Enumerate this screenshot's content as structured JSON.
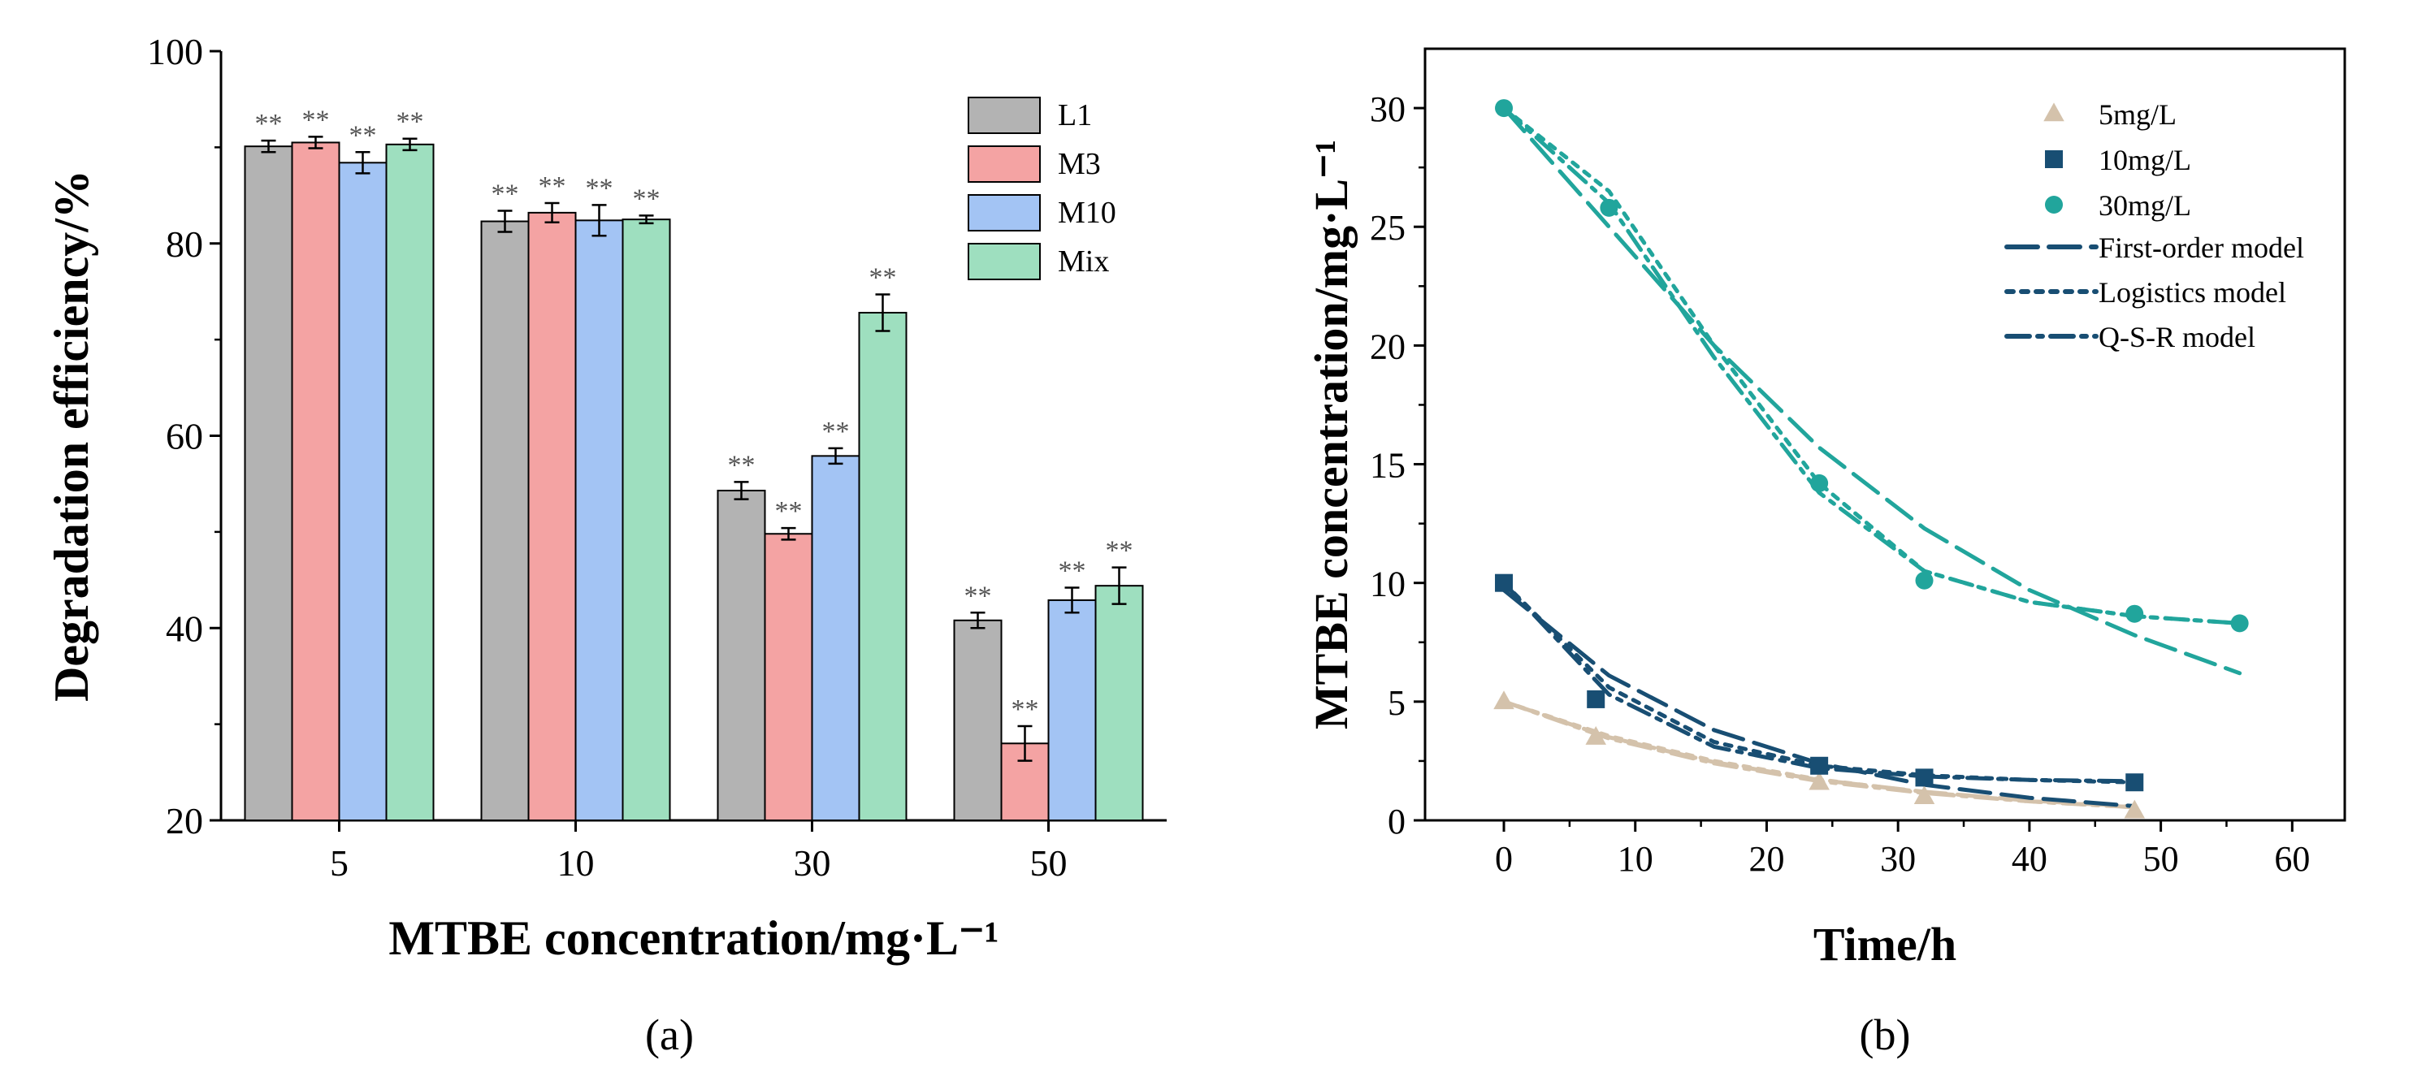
{
  "chart_data": [
    {
      "type": "bar",
      "panel_label": "(a)",
      "xlabel": "MTBE concentration/mg·L⁻¹",
      "ylabel": "Degradation efficiency/%",
      "categories": [
        "5",
        "10",
        "30",
        "50"
      ],
      "ylim": [
        20,
        100
      ],
      "yticks": [
        "20",
        "40",
        "60",
        "80",
        "100"
      ],
      "significance_label": "**",
      "legend_position": "top-right",
      "series": [
        {
          "name": "L1",
          "color": "#b3b3b3",
          "values": [
            90.1,
            82.3,
            54.3,
            40.8
          ],
          "errors": [
            0.6,
            1.1,
            0.9,
            0.8
          ]
        },
        {
          "name": "M3",
          "color": "#f4a3a3",
          "values": [
            90.5,
            83.2,
            49.8,
            28.0
          ],
          "errors": [
            0.6,
            1.0,
            0.6,
            1.8
          ]
        },
        {
          "name": "M10",
          "color": "#a3c4f4",
          "values": [
            88.4,
            82.4,
            57.9,
            42.9
          ],
          "errors": [
            1.1,
            1.6,
            0.8,
            1.3
          ]
        },
        {
          "name": "Mix",
          "color": "#9edfbf",
          "values": [
            90.3,
            82.5,
            72.8,
            44.4
          ],
          "errors": [
            0.6,
            0.4,
            1.9,
            1.9
          ]
        }
      ]
    },
    {
      "type": "scatter",
      "panel_label": "(b)",
      "xlabel": "Time/h",
      "ylabel": "MTBE concentration/mg·L⁻¹",
      "xlim": [
        -6,
        64
      ],
      "ylim": [
        0,
        32.5
      ],
      "xticks": [
        "0",
        "10",
        "20",
        "30",
        "40",
        "50",
        "60"
      ],
      "yticks": [
        "0",
        "5",
        "10",
        "15",
        "20",
        "25",
        "30"
      ],
      "legend_position": "top-center",
      "series": [
        {
          "name": "5mg/L",
          "marker": "triangle",
          "color": "#d4c2ab",
          "x": [
            0,
            7,
            24,
            32,
            48
          ],
          "y": [
            5.0,
            3.5,
            1.6,
            1.0,
            0.4
          ]
        },
        {
          "name": "10mg/L",
          "marker": "square",
          "color": "#184e73",
          "x": [
            0,
            7,
            24,
            32,
            48
          ],
          "y": [
            10.0,
            5.1,
            2.3,
            1.8,
            1.6
          ]
        },
        {
          "name": "30mg/L",
          "marker": "circle",
          "color": "#21a59c",
          "x": [
            0,
            8,
            24,
            32,
            48,
            56
          ],
          "y": [
            30.0,
            25.8,
            14.2,
            10.1,
            8.7,
            8.3
          ]
        }
      ],
      "models": [
        {
          "name": "First-order model",
          "dash": "long-dash"
        },
        {
          "name": "Logistics model",
          "dash": "dot"
        },
        {
          "name": "Q-S-R model",
          "dash": "dash-dot"
        }
      ],
      "fit_curves": [
        {
          "series": "5mg/L",
          "model": "First-order model",
          "x": [
            0,
            8,
            16,
            24,
            32,
            40,
            48
          ],
          "y": [
            5.0,
            3.5,
            2.45,
            1.7,
            1.2,
            0.83,
            0.58
          ]
        },
        {
          "series": "5mg/L",
          "model": "Logistics model",
          "x": [
            0,
            8,
            16,
            24,
            32,
            40,
            48
          ],
          "y": [
            5.0,
            3.55,
            2.5,
            1.72,
            1.18,
            0.8,
            0.55
          ]
        },
        {
          "series": "5mg/L",
          "model": "Q-S-R model",
          "x": [
            0,
            8,
            16,
            24,
            32,
            40,
            48
          ],
          "y": [
            5.0,
            3.45,
            2.4,
            1.65,
            1.15,
            0.8,
            0.55
          ]
        },
        {
          "series": "10mg/L",
          "model": "First-order model",
          "x": [
            0,
            8,
            16,
            24,
            32,
            40,
            48
          ],
          "y": [
            9.7,
            6.1,
            3.8,
            2.4,
            1.5,
            0.95,
            0.6
          ]
        },
        {
          "series": "10mg/L",
          "model": "Logistics model",
          "x": [
            0,
            8,
            16,
            24,
            32,
            40,
            48
          ],
          "y": [
            10.0,
            5.6,
            3.3,
            2.3,
            1.9,
            1.7,
            1.6
          ]
        },
        {
          "series": "10mg/L",
          "model": "Q-S-R model",
          "x": [
            0,
            8,
            16,
            24,
            32,
            40,
            48
          ],
          "y": [
            10.0,
            5.3,
            3.1,
            2.2,
            1.85,
            1.7,
            1.65
          ]
        },
        {
          "series": "30mg/L",
          "model": "First-order model",
          "x": [
            0,
            8,
            16,
            24,
            32,
            40,
            48,
            56
          ],
          "y": [
            30.0,
            25.0,
            20.0,
            15.7,
            12.3,
            9.7,
            7.8,
            6.2
          ]
        },
        {
          "series": "30mg/L",
          "model": "Logistics model",
          "x": [
            0,
            8,
            16,
            24,
            32,
            40,
            48,
            56
          ],
          "y": [
            30.0,
            26.5,
            20.0,
            14.2,
            10.5,
            9.2,
            8.6,
            8.3
          ]
        },
        {
          "series": "30mg/L",
          "model": "Q-S-R model",
          "x": [
            0,
            8,
            16,
            24,
            32,
            40,
            48,
            56
          ],
          "y": [
            30.0,
            26.0,
            19.5,
            13.8,
            10.5,
            9.2,
            8.6,
            8.3
          ]
        }
      ]
    }
  ]
}
